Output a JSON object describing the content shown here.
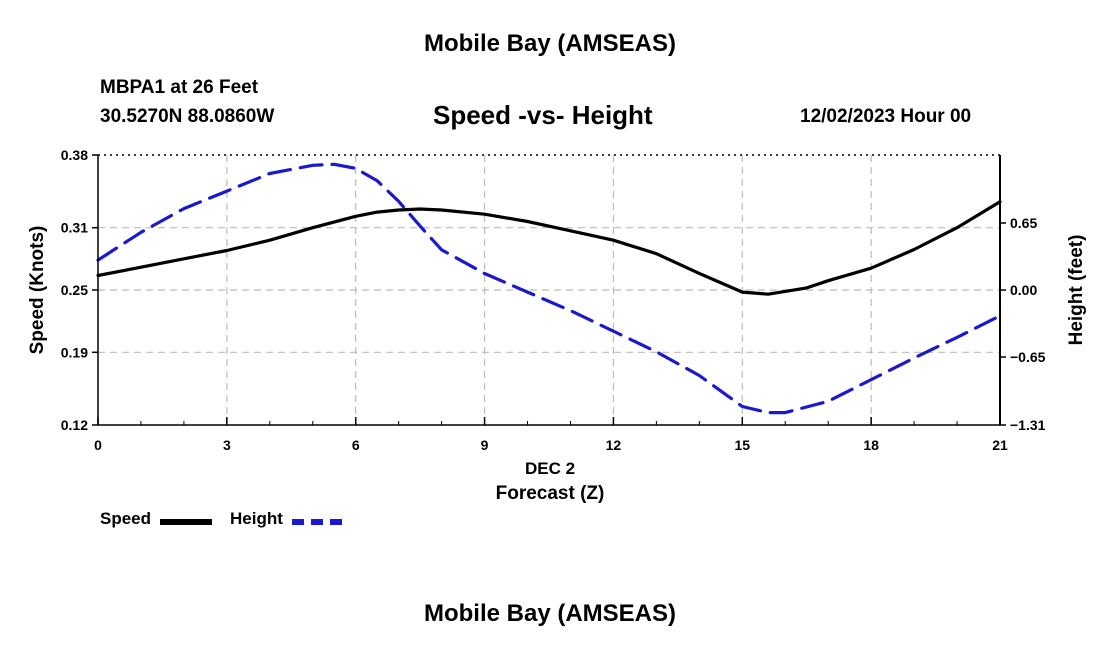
{
  "page": {
    "title_top": "Mobile Bay (AMSEAS)",
    "title_bottom": "Mobile Bay (AMSEAS)",
    "station_line": "MBPA1 at 26 Feet",
    "coords_line": "30.5270N  88.0860W",
    "date_line": "12/02/2023 Hour 00"
  },
  "colors": {
    "speed": "#000000",
    "height": "#1a1acc",
    "grid": "#bbbbbb"
  },
  "chart_data": {
    "type": "line",
    "title": "Speed -vs- Height",
    "xlabel": "Forecast (Z)",
    "x_date_label": "DEC 2",
    "ylabel": "Speed (Knots)",
    "y2label": "Height (feet)",
    "xlim": [
      0,
      21
    ],
    "ylim": [
      0.12,
      0.38
    ],
    "y2lim": [
      -1.31,
      1.31
    ],
    "x_ticks": [
      0,
      3,
      6,
      9,
      12,
      15,
      18,
      21
    ],
    "x_tick_labels": [
      "0",
      "3",
      "6",
      "9",
      "12",
      "15",
      "18",
      "21"
    ],
    "y_ticks": [
      0.12,
      0.19,
      0.25,
      0.31,
      0.38
    ],
    "y_tick_labels": [
      "0.12",
      "0.19",
      "0.25",
      "0.31",
      "0.38"
    ],
    "y2_ticks": [
      -1.31,
      -0.65,
      0.0,
      0.65
    ],
    "y2_tick_labels": [
      "−1.31",
      "−0.65",
      "0.00",
      "0.65"
    ],
    "grid": true,
    "legend_position": "bottom-left",
    "series": [
      {
        "name": "Speed",
        "axis": "left",
        "style": "solid",
        "x": [
          0,
          1,
          2,
          3,
          4,
          5,
          6,
          6.5,
          7,
          7.5,
          8,
          9,
          10,
          11,
          12,
          13,
          14,
          15,
          15.6,
          16.5,
          17,
          18,
          19,
          20,
          21
        ],
        "y": [
          0.264,
          0.272,
          0.28,
          0.288,
          0.298,
          0.31,
          0.321,
          0.325,
          0.327,
          0.328,
          0.327,
          0.323,
          0.316,
          0.307,
          0.298,
          0.285,
          0.266,
          0.248,
          0.246,
          0.252,
          0.259,
          0.271,
          0.289,
          0.31,
          0.335
        ]
      },
      {
        "name": "Height",
        "axis": "right",
        "style": "dashed",
        "x": [
          0,
          1,
          2,
          3,
          4,
          5,
          5.5,
          6,
          6.5,
          7,
          7.5,
          8,
          9,
          10,
          11,
          12,
          13,
          14,
          15,
          15.6,
          16,
          17,
          18,
          19,
          20,
          21
        ],
        "y": [
          0.29,
          0.56,
          0.79,
          0.96,
          1.13,
          1.21,
          1.22,
          1.18,
          1.06,
          0.86,
          0.62,
          0.39,
          0.16,
          -0.02,
          -0.2,
          -0.4,
          -0.6,
          -0.83,
          -1.13,
          -1.19,
          -1.19,
          -1.08,
          -0.87,
          -0.66,
          -0.46,
          -0.25
        ]
      }
    ]
  }
}
